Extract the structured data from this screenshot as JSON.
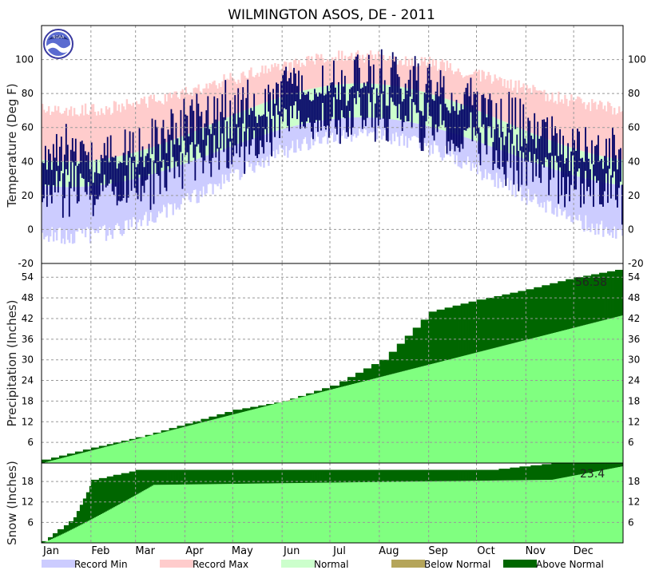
{
  "chart_data": [
    {
      "type": "area",
      "panel": "temperature",
      "title": "WILMINGTON   ASOS, DE - 2011",
      "ylabel": "Temperature (Deg F)",
      "ylim": [
        -20,
        120
      ],
      "yticks": [
        "-20",
        "0",
        "20",
        "40",
        "60",
        "80",
        "100"
      ],
      "grid": true,
      "series": [
        {
          "name": "Record Min",
          "description": "daily record low band (light blue)",
          "min_day1": 0,
          "min_midsummer": 60
        },
        {
          "name": "Record Max",
          "description": "daily record high band (pink)",
          "day1": 70,
          "midsummer": 102
        },
        {
          "name": "Normal",
          "description": "normal high/low band (light green)",
          "low_day1": 25,
          "low_midsummer": 66,
          "high_day1": 40,
          "high_midsummer": 86
        },
        {
          "name": "Observed",
          "description": "daily observed high/low bars (navy)",
          "approx_low_jan": 20,
          "approx_high_jul": 100
        }
      ]
    },
    {
      "type": "area",
      "panel": "precipitation",
      "ylabel": "Precipitation (Inches)",
      "ylim": [
        0,
        58
      ],
      "yticks": [
        "6",
        "12",
        "18",
        "24",
        "30",
        "36",
        "42",
        "48",
        "54"
      ],
      "total_label": "56.58",
      "observed_cumulative": [
        {
          "month": "Jan",
          "value": 1.0
        },
        {
          "month": "Feb",
          "value": 4.5
        },
        {
          "month": "Mar",
          "value": 7.5
        },
        {
          "month": "Apr",
          "value": 11.5
        },
        {
          "month": "May",
          "value": 15.5
        },
        {
          "month": "Jun",
          "value": 18.0
        },
        {
          "month": "Jul",
          "value": 22.5
        },
        {
          "month": "Aug",
          "value": 30.0
        },
        {
          "month": "Sep",
          "value": 44.0
        },
        {
          "month": "Oct",
          "value": 47.5
        },
        {
          "month": "Nov",
          "value": 50.5
        },
        {
          "month": "Dec",
          "value": 54.0
        },
        {
          "month": "End",
          "value": 56.58
        }
      ],
      "normal_cumulative_end": 43
    },
    {
      "type": "area",
      "panel": "snow",
      "ylabel": "Snow (Inches)",
      "ylim": [
        0,
        23.4
      ],
      "yticks": [
        "6",
        "12",
        "18"
      ],
      "total_label": "23.4",
      "observed_cumulative": [
        {
          "month": "Jan",
          "value": 0.5
        },
        {
          "month": "Jan-late",
          "value": 7.5
        },
        {
          "month": "Feb",
          "value": 18.5
        },
        {
          "month": "Mar",
          "value": 21.4
        },
        {
          "month": "Oct",
          "value": 21.4
        },
        {
          "month": "Nov",
          "value": 23.4
        },
        {
          "month": "Dec",
          "value": 23.4
        }
      ],
      "normal_cumulative_end": 22.5
    }
  ],
  "months": [
    "Jan",
    "Feb",
    "Mar",
    "Apr",
    "May",
    "Jun",
    "Jul",
    "Aug",
    "Sep",
    "Oct",
    "Nov",
    "Dec"
  ],
  "legend": [
    {
      "name": "Record Min",
      "color": "#ccccff"
    },
    {
      "name": "Record Max",
      "color": "#ffcccc"
    },
    {
      "name": "Normal",
      "color": "#ccffcc"
    },
    {
      "name": "Below Normal",
      "color": "#b5a55a"
    },
    {
      "name": "Above Normal",
      "color": "#006600"
    }
  ],
  "colors": {
    "record_min": "#ccccff",
    "record_max": "#ffcccc",
    "normal": "#ccffcc",
    "observed": "#000066",
    "normal_accum": "#80ff80",
    "above_normal": "#006600",
    "below_normal": "#b5a55a"
  }
}
